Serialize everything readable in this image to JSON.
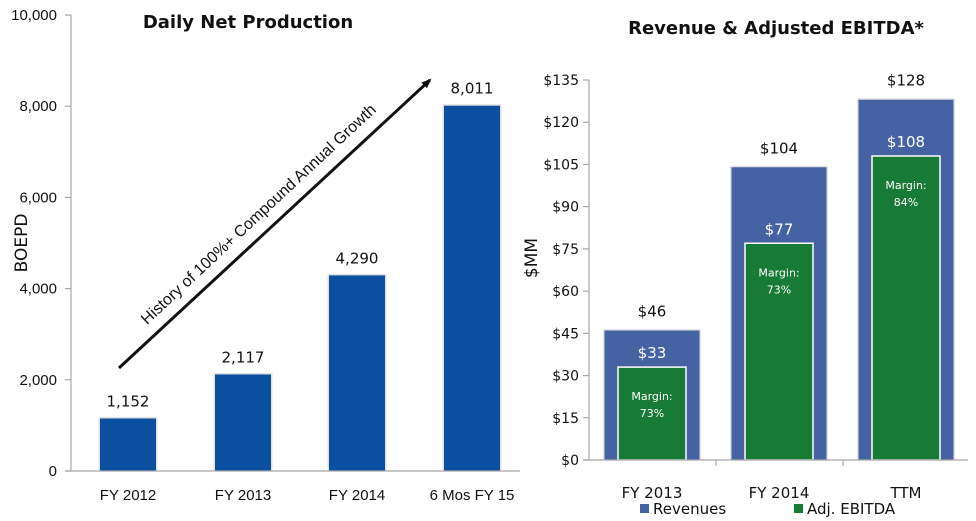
{
  "chart_data": [
    {
      "type": "bar",
      "title": "Daily Net Production",
      "xlabel": "",
      "ylabel": "BOEPD",
      "ylim": [
        0,
        10000
      ],
      "yticks": [
        0,
        2000,
        4000,
        6000,
        8000,
        10000
      ],
      "ytick_labels": [
        "0",
        "2,000",
        "4,000",
        "6,000",
        "8,000",
        "10,000"
      ],
      "categories": [
        "FY 2012",
        "FY 2013",
        "FY 2014",
        "6 Mos FY 15"
      ],
      "values": [
        1152,
        2117,
        4290,
        8011
      ],
      "data_labels": [
        "1,152",
        "2,117",
        "4,290",
        "8,011"
      ],
      "color": "#0B50A0",
      "grid": false,
      "annotation": {
        "text": "History of 100%+ Compound Annual Growth",
        "type": "arrow",
        "direction": "up-right"
      }
    },
    {
      "type": "bar",
      "title": "Revenue & Adjusted EBITDA*",
      "xlabel": "",
      "ylabel": "$MM",
      "ylim": [
        0,
        135
      ],
      "yticks": [
        0,
        15,
        30,
        45,
        60,
        75,
        90,
        105,
        120,
        135
      ],
      "ytick_labels": [
        "$0",
        "$15",
        "$30",
        "$45",
        "$60",
        "$75",
        "$90",
        "$105",
        "$120",
        "$135"
      ],
      "categories": [
        "FY 2013",
        "FY 2014",
        "TTM"
      ],
      "series": [
        {
          "name": "Revenues",
          "color": "#4563A3",
          "values": [
            46,
            104,
            128
          ],
          "data_labels": [
            "$46",
            "$104",
            "$128"
          ]
        },
        {
          "name": "Adj. EBITDA",
          "color": "#177A35",
          "values": [
            33,
            77,
            108
          ],
          "data_labels": [
            "$33",
            "$77",
            "$108"
          ],
          "margin_prefix": "Margin:",
          "margins": [
            "73%",
            "73%",
            "84%"
          ]
        }
      ],
      "legend": "bottom",
      "grid": false,
      "overlap": true
    }
  ]
}
